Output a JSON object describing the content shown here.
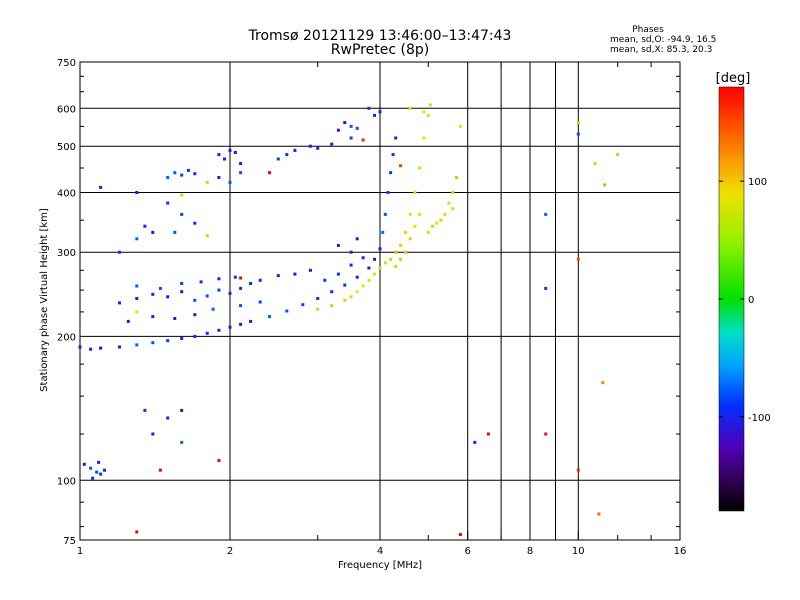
{
  "chart_data": {
    "type": "scatter",
    "title": "Tromsø 20121129 13:46:00–13:47:43",
    "subtitle": "RwPretec (8p)",
    "xlabel": "Frequency [MHz]",
    "ylabel": "Stationary phase Virtual Height [km]",
    "x_scale": "log",
    "y_scale": "log",
    "xlim": [
      1,
      16
    ],
    "ylim": [
      75,
      750
    ],
    "x_ticks": [
      1,
      2,
      4,
      6,
      8,
      10,
      16
    ],
    "x_tick_labels": [
      "1",
      "2",
      "4",
      "6",
      "8",
      "10",
      "16"
    ],
    "x_gridlines": [
      2,
      4,
      6,
      7,
      8,
      9,
      10
    ],
    "y_ticks": [
      75,
      100,
      200,
      300,
      400,
      500,
      600,
      750
    ],
    "y_tick_labels": [
      "75",
      "100",
      "200",
      "300",
      "400",
      "500",
      "600",
      "750"
    ],
    "grid": true,
    "stats": {
      "heading": "Phases",
      "line1": "mean, sd,O: -94.9, 16.5",
      "line2": "mean, sd,X: 85.3, 20.3"
    },
    "colorbar": {
      "label": "[deg]",
      "range": [
        -180,
        180
      ],
      "ticks": [
        100,
        0,
        -100
      ],
      "tick_labels": [
        "100",
        "0",
        "-100"
      ]
    },
    "series": [
      {
        "mode": "O",
        "phase": -95,
        "points": [
          [
            1.02,
            108
          ],
          [
            1.05,
            106
          ],
          [
            1.08,
            104
          ],
          [
            1.1,
            103
          ],
          [
            1.12,
            105
          ],
          [
            1.06,
            101
          ],
          [
            1.09,
            109
          ],
          [
            1.0,
            190
          ],
          [
            1.05,
            188
          ],
          [
            1.1,
            189
          ],
          [
            1.2,
            190
          ],
          [
            1.3,
            192
          ],
          [
            1.4,
            194
          ],
          [
            1.5,
            196
          ],
          [
            1.6,
            198
          ],
          [
            1.7,
            200
          ],
          [
            1.8,
            203
          ],
          [
            1.9,
            206
          ],
          [
            2.0,
            209
          ],
          [
            2.1,
            212
          ],
          [
            2.2,
            215
          ],
          [
            2.4,
            220
          ],
          [
            2.6,
            226
          ],
          [
            2.8,
            233
          ],
          [
            3.0,
            240
          ],
          [
            3.2,
            248
          ],
          [
            3.4,
            256
          ],
          [
            3.6,
            266
          ],
          [
            3.8,
            278
          ],
          [
            3.9,
            290
          ],
          [
            4.0,
            305
          ],
          [
            4.05,
            330
          ],
          [
            4.1,
            360
          ],
          [
            4.15,
            400
          ],
          [
            4.2,
            440
          ],
          [
            4.25,
            480
          ],
          [
            4.3,
            520
          ],
          [
            1.2,
            235
          ],
          [
            1.3,
            240
          ],
          [
            1.4,
            245
          ],
          [
            1.5,
            242
          ],
          [
            1.6,
            248
          ],
          [
            1.7,
            238
          ],
          [
            1.8,
            243
          ],
          [
            1.9,
            250
          ],
          [
            2.0,
            246
          ],
          [
            2.1,
            252
          ],
          [
            2.2,
            258
          ],
          [
            2.3,
            262
          ],
          [
            2.5,
            268
          ],
          [
            2.7,
            270
          ],
          [
            2.9,
            275
          ],
          [
            1.3,
            255
          ],
          [
            1.45,
            252
          ],
          [
            1.6,
            258
          ],
          [
            1.75,
            260
          ],
          [
            1.9,
            264
          ],
          [
            2.05,
            266
          ],
          [
            1.25,
            215
          ],
          [
            1.4,
            220
          ],
          [
            1.55,
            218
          ],
          [
            1.7,
            222
          ],
          [
            1.85,
            228
          ],
          [
            2.1,
            232
          ],
          [
            2.3,
            236
          ],
          [
            3.1,
            262
          ],
          [
            3.3,
            270
          ],
          [
            3.5,
            282
          ],
          [
            3.7,
            292
          ],
          [
            3.5,
            300
          ],
          [
            3.3,
            310
          ],
          [
            3.6,
            320
          ],
          [
            1.5,
            430
          ],
          [
            1.55,
            440
          ],
          [
            1.6,
            435
          ],
          [
            1.65,
            445
          ],
          [
            1.7,
            438
          ],
          [
            1.9,
            480
          ],
          [
            1.95,
            470
          ],
          [
            2.0,
            490
          ],
          [
            2.05,
            485
          ],
          [
            2.1,
            460
          ],
          [
            1.9,
            430
          ],
          [
            2.0,
            420
          ],
          [
            2.1,
            440
          ],
          [
            2.5,
            470
          ],
          [
            2.6,
            480
          ],
          [
            2.7,
            490
          ],
          [
            2.9,
            500
          ],
          [
            3.0,
            495
          ],
          [
            3.2,
            505
          ],
          [
            3.3,
            540
          ],
          [
            3.4,
            560
          ],
          [
            3.5,
            550
          ],
          [
            3.6,
            545
          ],
          [
            3.5,
            520
          ],
          [
            3.8,
            600
          ],
          [
            3.9,
            580
          ],
          [
            4.0,
            590
          ],
          [
            1.1,
            410
          ],
          [
            1.3,
            400
          ],
          [
            1.35,
            340
          ],
          [
            1.4,
            330
          ],
          [
            1.3,
            320
          ],
          [
            1.55,
            330
          ],
          [
            1.6,
            360
          ],
          [
            1.5,
            380
          ],
          [
            1.7,
            345
          ],
          [
            1.2,
            300
          ],
          [
            1.35,
            140
          ],
          [
            1.5,
            135
          ],
          [
            1.6,
            140
          ],
          [
            1.4,
            125
          ],
          [
            1.6,
            120
          ],
          [
            8.6,
            360
          ],
          [
            10.0,
            530
          ],
          [
            8.6,
            252
          ],
          [
            6.2,
            120
          ]
        ]
      },
      {
        "mode": "X",
        "phase": 85,
        "points": [
          [
            3.0,
            228
          ],
          [
            3.2,
            232
          ],
          [
            3.4,
            238
          ],
          [
            3.5,
            242
          ],
          [
            3.6,
            248
          ],
          [
            3.7,
            255
          ],
          [
            3.8,
            262
          ],
          [
            3.9,
            270
          ],
          [
            4.0,
            278
          ],
          [
            4.1,
            285
          ],
          [
            4.2,
            290
          ],
          [
            4.3,
            300
          ],
          [
            4.4,
            310
          ],
          [
            4.5,
            330
          ],
          [
            4.6,
            360
          ],
          [
            4.7,
            400
          ],
          [
            4.8,
            450
          ],
          [
            4.9,
            520
          ],
          [
            5.0,
            580
          ],
          [
            5.05,
            610
          ],
          [
            4.3,
            280
          ],
          [
            4.4,
            290
          ],
          [
            4.5,
            300
          ],
          [
            4.6,
            320
          ],
          [
            4.7,
            340
          ],
          [
            4.8,
            360
          ],
          [
            5.0,
            330
          ],
          [
            5.2,
            345
          ],
          [
            5.4,
            360
          ],
          [
            5.5,
            380
          ],
          [
            5.6,
            400
          ],
          [
            5.7,
            430
          ],
          [
            5.1,
            340
          ],
          [
            5.3,
            350
          ],
          [
            5.6,
            370
          ],
          [
            5.8,
            550
          ],
          [
            4.9,
            590
          ],
          [
            4.6,
            600
          ],
          [
            1.3,
            225
          ],
          [
            1.6,
            395
          ],
          [
            1.8,
            420
          ],
          [
            10.8,
            460
          ],
          [
            12.0,
            480
          ]
        ]
      },
      {
        "mode": "other",
        "phase": 160,
        "points": [
          [
            1.8,
            325
          ],
          [
            2.4,
            440
          ],
          [
            2.1,
            265
          ],
          [
            6.6,
            125
          ],
          [
            8.6,
            125
          ],
          [
            10.0,
            105
          ],
          [
            10.0,
            290
          ],
          [
            11.0,
            85
          ],
          [
            11.2,
            160
          ],
          [
            11.3,
            415
          ],
          [
            10.0,
            560
          ],
          [
            5.8,
            77
          ],
          [
            1.45,
            105
          ],
          [
            1.3,
            78
          ],
          [
            1.9,
            110
          ],
          [
            3.7,
            515
          ],
          [
            4.4,
            455
          ]
        ]
      }
    ]
  }
}
